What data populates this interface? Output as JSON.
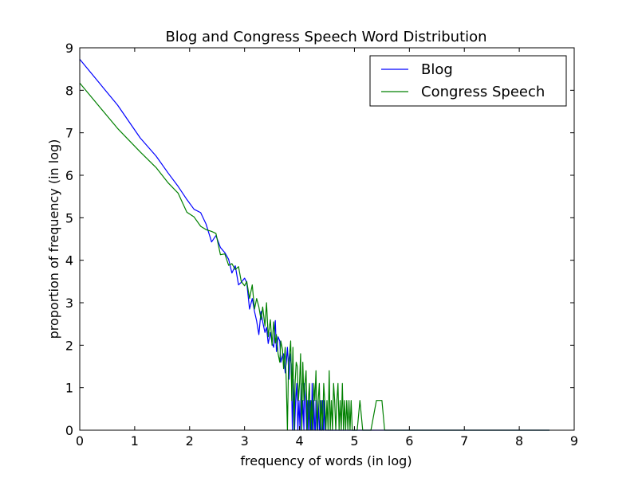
{
  "chart_data": {
    "type": "line",
    "title": "Blog and Congress Speech Word Distribution",
    "xlabel": "frequency of words (in log)",
    "ylabel": "proportion of frequency (in log)",
    "xlim": [
      0,
      9
    ],
    "ylim": [
      0,
      9
    ],
    "xticks": [
      "0",
      "1",
      "2",
      "3",
      "4",
      "5",
      "6",
      "7",
      "8",
      "9"
    ],
    "yticks": [
      "0",
      "1",
      "2",
      "3",
      "4",
      "5",
      "6",
      "7",
      "8",
      "9"
    ],
    "grid": false,
    "legend_position": "top-right",
    "series": [
      {
        "name": "Blog",
        "color": "#0000ff",
        "x": [
          0,
          0.69,
          1.1,
          1.39,
          1.61,
          1.79,
          1.95,
          2.08,
          2.2,
          2.3,
          2.4,
          2.48,
          2.56,
          2.64,
          2.71,
          2.77,
          2.83,
          2.89,
          2.94,
          3.0,
          3.04,
          3.09,
          3.14,
          3.18,
          3.22,
          3.26,
          3.3,
          3.33,
          3.37,
          3.4,
          3.43,
          3.47,
          3.5,
          3.53,
          3.56,
          3.58,
          3.61,
          3.64,
          3.66,
          3.69,
          3.71,
          3.74,
          3.76,
          3.78,
          3.81,
          3.83,
          3.85,
          3.87,
          3.89,
          3.91,
          3.93,
          3.95,
          3.97,
          3.99,
          4.01,
          4.03,
          4.04,
          4.06,
          4.08,
          4.09,
          4.11,
          4.13,
          4.14,
          4.16,
          4.17,
          4.19,
          4.2,
          4.22,
          4.23,
          4.25,
          4.26,
          4.28,
          4.29,
          4.3,
          4.32,
          4.33,
          4.34,
          4.36,
          4.37,
          4.38,
          4.39,
          4.41,
          4.42,
          4.43,
          4.44,
          4.45,
          4.47,
          4.48,
          4.5,
          4.55,
          4.6,
          4.65,
          4.7,
          4.8,
          5.0,
          6.0,
          7.0,
          8.0,
          8.55
        ],
        "y": [
          8.73,
          7.65,
          6.88,
          6.45,
          6.05,
          5.74,
          5.43,
          5.2,
          5.12,
          4.85,
          4.43,
          4.58,
          4.3,
          4.18,
          4.02,
          3.7,
          3.87,
          3.42,
          3.48,
          3.58,
          3.47,
          2.85,
          3.1,
          2.8,
          2.57,
          2.25,
          2.8,
          2.55,
          2.3,
          2.42,
          2.04,
          2.3,
          2.05,
          1.95,
          2.58,
          1.85,
          2.2,
          2.1,
          1.6,
          1.75,
          1.8,
          1.35,
          1.6,
          1.95,
          1.2,
          1.8,
          1.55,
          0.0,
          1.2,
          0.0,
          0.7,
          1.1,
          0.0,
          0.7,
          0.0,
          1.1,
          0.0,
          0.7,
          0.0,
          1.1,
          0.7,
          0.0,
          0.7,
          0.0,
          0.7,
          0.0,
          0.7,
          0.0,
          1.1,
          0.0,
          0.7,
          0.0,
          0.0,
          0.7,
          0.0,
          0.0,
          0.7,
          0.0,
          0.0,
          0.7,
          0.0,
          0.0,
          0.7,
          0.0,
          0.0,
          0.7,
          0.0,
          0.0,
          0.0,
          0.0,
          0.0,
          0.0,
          0.0,
          0.0,
          0.0,
          0.0,
          0.0,
          0.0,
          0.0
        ]
      },
      {
        "name": "Congress Speech",
        "color": "#008000",
        "x": [
          0,
          0.69,
          1.1,
          1.39,
          1.61,
          1.79,
          1.95,
          2.08,
          2.2,
          2.3,
          2.4,
          2.48,
          2.56,
          2.64,
          2.71,
          2.77,
          2.83,
          2.89,
          2.94,
          3.0,
          3.04,
          3.09,
          3.14,
          3.18,
          3.22,
          3.26,
          3.3,
          3.33,
          3.37,
          3.4,
          3.43,
          3.47,
          3.5,
          3.53,
          3.56,
          3.58,
          3.61,
          3.64,
          3.66,
          3.69,
          3.71,
          3.74,
          3.76,
          3.78,
          3.8,
          3.82,
          3.84,
          3.86,
          3.88,
          3.9,
          3.92,
          3.94,
          3.96,
          3.98,
          4.0,
          4.02,
          4.04,
          4.06,
          4.08,
          4.1,
          4.12,
          4.14,
          4.16,
          4.18,
          4.2,
          4.22,
          4.24,
          4.26,
          4.28,
          4.3,
          4.32,
          4.34,
          4.36,
          4.38,
          4.4,
          4.42,
          4.44,
          4.46,
          4.48,
          4.5,
          4.52,
          4.54,
          4.56,
          4.58,
          4.6,
          4.62,
          4.64,
          4.66,
          4.68,
          4.7,
          4.72,
          4.74,
          4.76,
          4.78,
          4.8,
          4.82,
          4.84,
          4.86,
          4.88,
          4.9,
          4.92,
          4.94,
          4.96,
          4.98,
          5.0,
          5.05,
          5.1,
          5.15,
          5.2,
          5.3,
          5.4,
          5.5,
          5.55,
          6.0,
          7.0,
          8.0,
          8.55
        ],
        "y": [
          8.17,
          7.1,
          6.55,
          6.18,
          5.82,
          5.58,
          5.13,
          5.02,
          4.8,
          4.72,
          4.68,
          4.63,
          4.13,
          4.15,
          3.88,
          3.92,
          3.78,
          3.85,
          3.5,
          3.4,
          3.5,
          3.1,
          3.42,
          2.85,
          3.1,
          2.9,
          2.6,
          2.9,
          2.45,
          3.0,
          2.2,
          2.6,
          2.0,
          2.55,
          2.05,
          2.25,
          1.8,
          1.6,
          2.1,
          1.9,
          1.45,
          1.95,
          1.1,
          0.0,
          1.6,
          1.8,
          2.1,
          0.7,
          1.95,
          0.0,
          1.1,
          1.6,
          1.5,
          0.7,
          1.1,
          1.8,
          0.0,
          1.6,
          0.7,
          1.1,
          1.4,
          0.0,
          0.7,
          1.1,
          0.0,
          0.7,
          0.0,
          1.1,
          0.7,
          1.4,
          0.0,
          0.7,
          1.1,
          0.0,
          0.7,
          0.0,
          1.1,
          0.7,
          0.0,
          0.7,
          0.0,
          1.4,
          0.0,
          0.7,
          0.0,
          1.1,
          0.7,
          0.0,
          0.7,
          1.1,
          0.0,
          0.7,
          0.0,
          1.1,
          0.0,
          0.7,
          0.0,
          0.7,
          0.0,
          0.7,
          0.0,
          0.7,
          0.0,
          0.0,
          0.0,
          0.0,
          0.7,
          0.0,
          0.0,
          0.0,
          0.7,
          0.7,
          0.0,
          0.0,
          0.0,
          0.0,
          0.0
        ]
      }
    ]
  }
}
